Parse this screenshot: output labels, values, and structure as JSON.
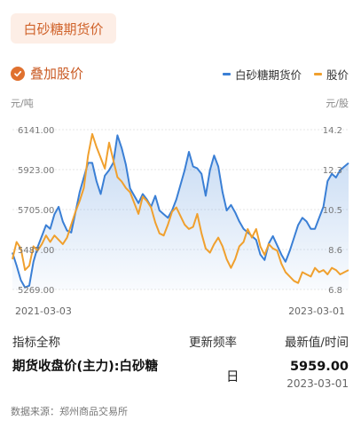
{
  "title": "白砂糖期货价",
  "overlay_toggle": {
    "label": "叠加股价",
    "checked": true,
    "icon": "check-icon"
  },
  "legend": [
    {
      "name": "白砂糖期货价",
      "color": "#3a7fd5"
    },
    {
      "name": "股价",
      "color": "#f0a02e"
    }
  ],
  "units": {
    "left": "元/吨",
    "right": "元/股"
  },
  "chart_data": {
    "type": "line",
    "x_start": "2021-03-03",
    "x_end": "2023-03-01",
    "y_left_ticks": [
      "6141.00",
      "5923.00",
      "5705.00",
      "5487.00",
      "5269.00"
    ],
    "y_right_ticks": [
      "14.2",
      "12.3",
      "10.5",
      "8.6",
      "6.8"
    ],
    "ylim_left": [
      5269,
      6141
    ],
    "ylim_right": [
      6.8,
      14.2
    ],
    "grid": true,
    "series": [
      {
        "name": "白砂糖期货价",
        "axis": "left",
        "color": "#3a7fd5",
        "area": true,
        "values": [
          5470,
          5400,
          5320,
          5280,
          5290,
          5420,
          5500,
          5560,
          5620,
          5600,
          5680,
          5720,
          5640,
          5590,
          5580,
          5690,
          5800,
          5880,
          5960,
          5960,
          5860,
          5790,
          5890,
          5920,
          5960,
          6110,
          6040,
          5950,
          5820,
          5780,
          5740,
          5790,
          5760,
          5720,
          5780,
          5700,
          5680,
          5660,
          5700,
          5760,
          5840,
          5920,
          6020,
          5940,
          5930,
          5900,
          5780,
          5920,
          6000,
          5940,
          5800,
          5700,
          5730,
          5690,
          5640,
          5600,
          5580,
          5560,
          5540,
          5460,
          5430,
          5520,
          5560,
          5510,
          5460,
          5420,
          5480,
          5550,
          5620,
          5660,
          5640,
          5600,
          5600,
          5660,
          5720,
          5860,
          5900,
          5880,
          5920,
          5940,
          5959
        ]
      },
      {
        "name": "股价",
        "axis": "right",
        "color": "#f0a02e",
        "area": false,
        "values": [
          8.2,
          9.0,
          8.7,
          7.7,
          7.9,
          8.8,
          8.6,
          8.9,
          9.3,
          9.0,
          9.3,
          9.1,
          8.9,
          9.2,
          9.8,
          10.4,
          10.9,
          11.5,
          13.0,
          14.0,
          13.4,
          12.9,
          12.4,
          13.6,
          12.8,
          12.0,
          11.8,
          11.5,
          11.3,
          10.8,
          10.3,
          11.1,
          10.9,
          10.6,
          9.9,
          9.4,
          9.3,
          9.8,
          10.4,
          10.6,
          10.2,
          9.8,
          9.6,
          9.7,
          10.3,
          9.4,
          8.7,
          8.5,
          8.9,
          9.2,
          8.8,
          8.2,
          7.8,
          8.2,
          8.8,
          9.0,
          9.6,
          9.2,
          9.6,
          8.8,
          8.4,
          8.9,
          8.7,
          8.6,
          8.0,
          7.6,
          7.4,
          7.2,
          7.1,
          7.6,
          7.5,
          7.4,
          7.8,
          7.6,
          7.7,
          7.5,
          7.8,
          7.7,
          7.5,
          7.6,
          7.7
        ]
      }
    ]
  },
  "table": {
    "headers": {
      "name": "指标全称",
      "freq": "更新频率",
      "latest": "最新值/时间"
    },
    "row": {
      "name": "期货收盘价(主力):白砂糖",
      "freq": "日",
      "value": "5959.00",
      "date": "2023-03-01"
    }
  },
  "source": "数据来源：郑州商品交易所"
}
